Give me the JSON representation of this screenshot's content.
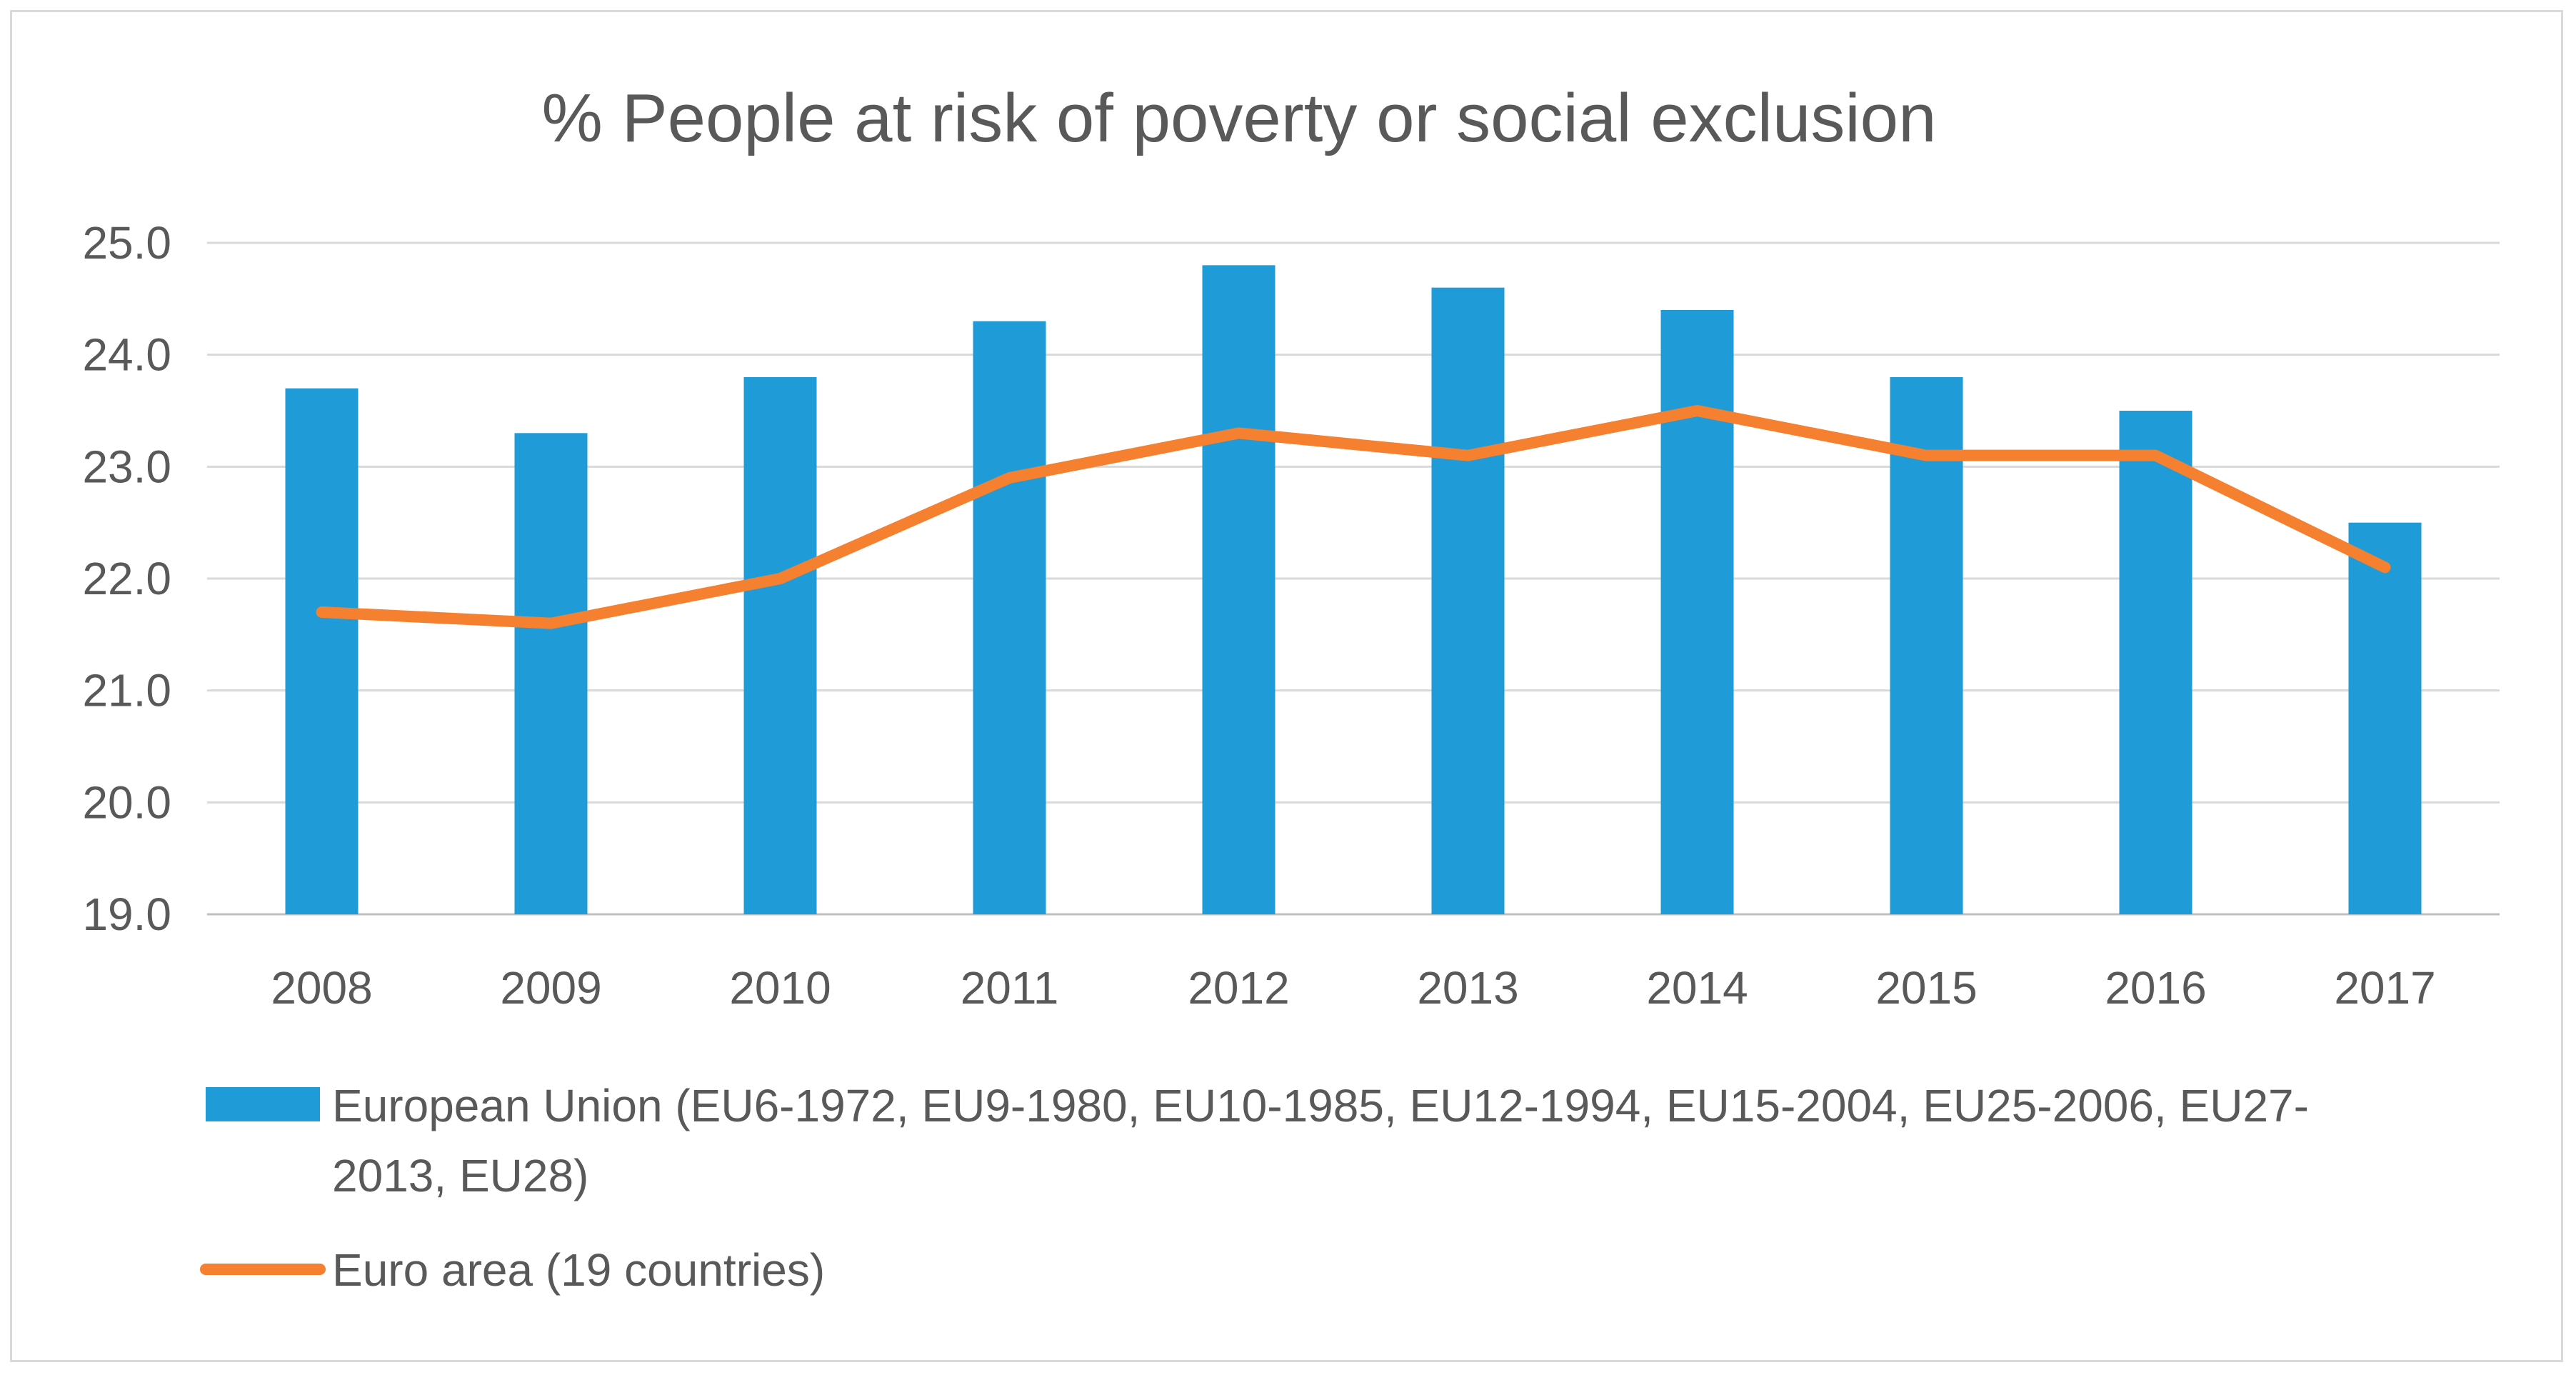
{
  "chart_data": {
    "type": "bar+line",
    "title": "% People at risk of poverty or social exclusion",
    "categories": [
      "2008",
      "2009",
      "2010",
      "2011",
      "2012",
      "2013",
      "2014",
      "2015",
      "2016",
      "2017"
    ],
    "ylim": [
      19.0,
      25.0
    ],
    "yticks": [
      "19.0",
      "20.0",
      "21.0",
      "22.0",
      "23.0",
      "24.0",
      "25.0"
    ],
    "grid": true,
    "legend_position": "bottom",
    "series": [
      {
        "name": "European Union (EU6-1972, EU9-1980, EU10-1985, EU12-1994, EU15-2004, EU25-2006, EU27-2013, EU28)",
        "legend_lines": [
          "European Union (EU6-1972, EU9-1980, EU10-1985, EU12-1994, EU15-2004, EU25-2006, EU27-",
          "2013, EU28)"
        ],
        "kind": "bar",
        "color": "#1f9bd7",
        "values": [
          23.7,
          23.3,
          23.8,
          24.3,
          24.8,
          24.6,
          24.4,
          23.8,
          23.5,
          22.5
        ]
      },
      {
        "name": "Euro area (19 countries)",
        "legend_lines": [
          "Euro area (19 countries)"
        ],
        "kind": "line",
        "color": "#f5802f",
        "values": [
          21.7,
          21.6,
          22.0,
          22.9,
          23.3,
          23.1,
          23.5,
          23.1,
          23.1,
          22.1
        ]
      }
    ]
  }
}
